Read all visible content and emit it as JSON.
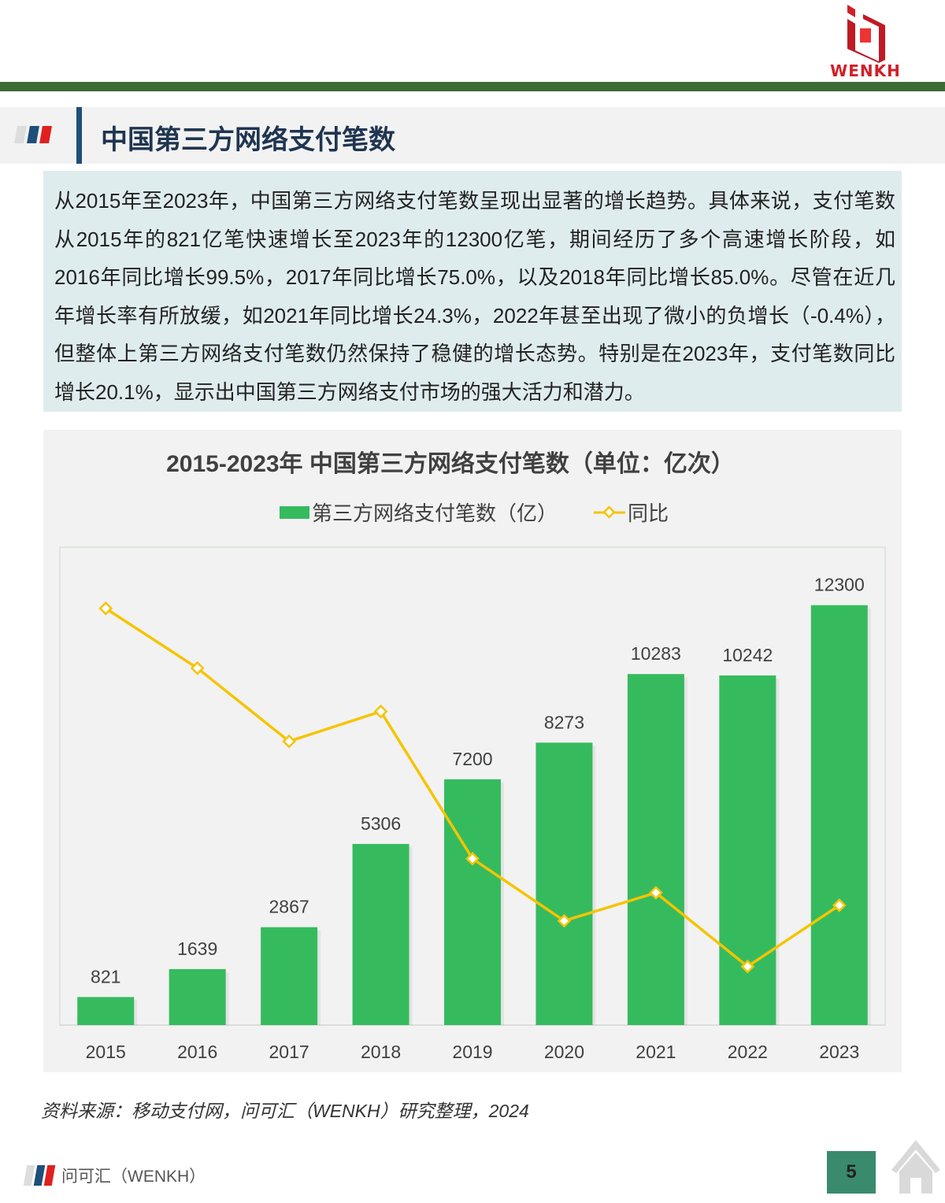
{
  "header": {
    "logo_text": "WENKH",
    "title": "中国第三方网络支付笔数"
  },
  "summary": "从2015年至2023年，中国第三方网络支付笔数呈现出显著的增长趋势。具体来说，支付笔数从2015年的821亿笔快速增长至2023年的12300亿笔，期间经历了多个高速增长阶段，如2016年同比增长99.5%，2017年同比增长75.0%，以及2018年同比增长85.0%。尽管在近几年增长率有所放缓，如2021年同比增长24.3%，2022年甚至出现了微小的负增长（-0.4%），但整体上第三方网络支付笔数仍然保持了稳健的增长态势。特别是在2023年，支付笔数同比增长20.1%，显示出中国第三方网络支付市场的强大活力和潜力。",
  "chart_data": {
    "type": "bar",
    "title": "2015-2023年 中国第三方网络支付笔数（单位：亿次）",
    "categories": [
      "2015",
      "2016",
      "2017",
      "2018",
      "2019",
      "2020",
      "2021",
      "2022",
      "2023"
    ],
    "series": [
      {
        "name": "第三方网络支付笔数（亿）",
        "type": "bar",
        "axis": "left",
        "color": "#35bb5e",
        "values": [
          821,
          1639,
          2867,
          5306,
          7200,
          8273,
          10283,
          10242,
          12300
        ]
      },
      {
        "name": "同比",
        "type": "line",
        "axis": "right",
        "color": "#f5c400",
        "values": [
          119.5,
          99.5,
          75.0,
          85.0,
          35.7,
          14.9,
          24.3,
          -0.4,
          20.1
        ]
      }
    ],
    "ylim": [
      0,
      14000
    ],
    "y2lim": [
      -20,
      140
    ],
    "legend": "top-center",
    "grid": false
  },
  "source": "资料来源：移动支付网，问可汇（WENKH）研究整理，2024",
  "footer": {
    "brand": "问可汇（WENKH）",
    "page": "5"
  }
}
